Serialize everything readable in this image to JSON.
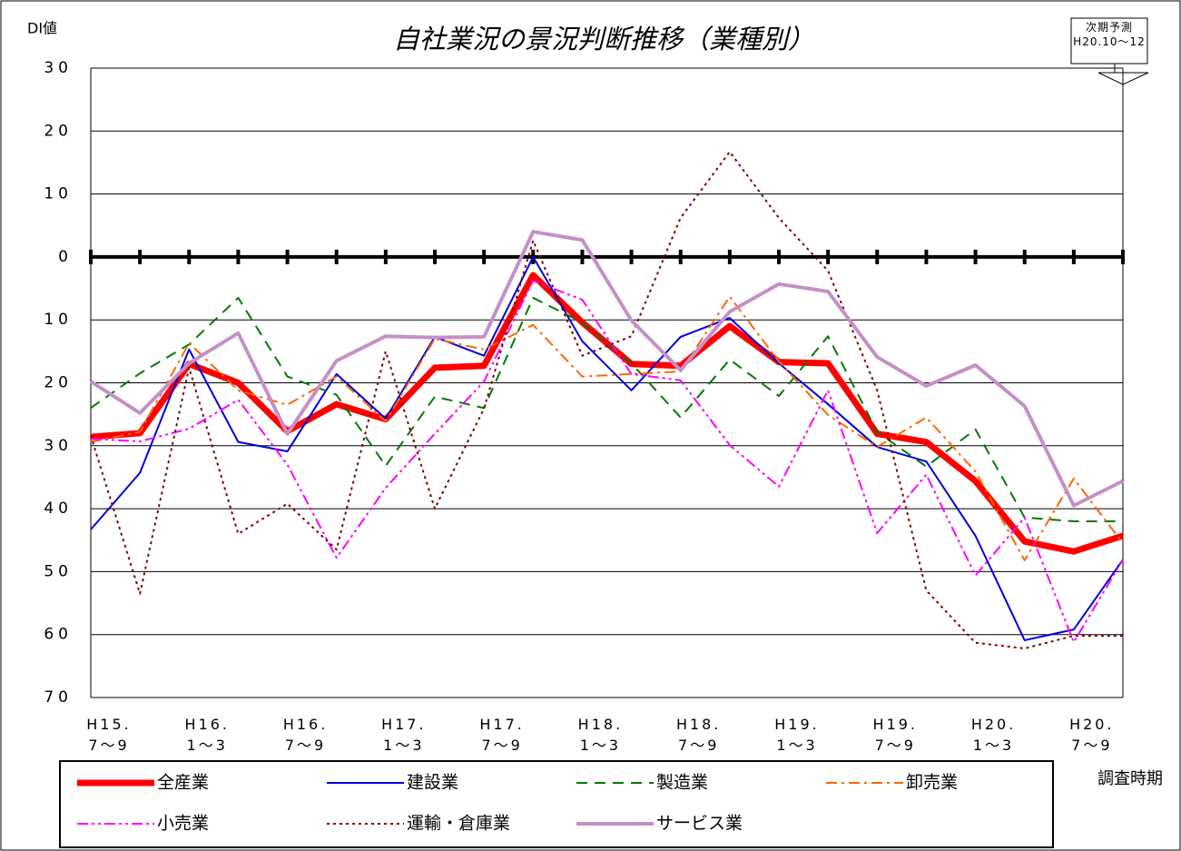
{
  "chart_data": {
    "type": "line",
    "title": "自社業況の景況判断推移（業種別）",
    "y_label": "DI値",
    "x_label": "調査時期",
    "annotation": "次期予測\nH20.10～12",
    "categories": [
      "H15.\n7～9",
      null,
      "H16.\n1～3",
      null,
      "H16.\n7～9",
      null,
      "H17.\n1～3",
      null,
      "H17.\n7～9",
      null,
      "H18.\n1～3",
      null,
      "H18.\n7～9",
      null,
      "H19.\n1～3",
      null,
      "H19.\n7～9",
      null,
      "H20.\n1～3",
      null,
      "H20.\n7～9",
      null
    ],
    "ylim": [
      -70,
      30
    ],
    "yticks": [
      30,
      20,
      10,
      0,
      {
        "value": -10,
        "label": "10"
      },
      {
        "value": -20,
        "label": "20"
      },
      {
        "value": -30,
        "label": "30"
      },
      {
        "value": -40,
        "label": "40"
      },
      {
        "value": -50,
        "label": "50"
      },
      {
        "value": -60,
        "label": "60"
      },
      {
        "value": -70,
        "label": "70"
      }
    ],
    "grid": true,
    "series": [
      {
        "name": "全産業",
        "color": "#ff0000",
        "width": 7,
        "dash": "none",
        "values": [
          -28.6,
          -28,
          -17,
          -20,
          -27.7,
          -23.4,
          -25.8,
          -17.6,
          -17.3,
          -2.9,
          -10.4,
          -17,
          -17.3,
          -11,
          -16.7,
          -16.9,
          -28.1,
          -29.4,
          -35.6,
          -45.2,
          -46.8,
          -44.3
        ]
      },
      {
        "name": "建設業",
        "color": "#0000dd",
        "width": 2,
        "dash": "none",
        "values": [
          -43.3,
          -34.3,
          -14.7,
          -29.4,
          -30.9,
          -18.6,
          -25.7,
          -12.7,
          -15.7,
          0,
          -13.4,
          -21.2,
          -12.7,
          -9.7,
          -16.9,
          -23.4,
          -30.2,
          -32.5,
          -44.3,
          -60.9,
          -59.2,
          -48.1
        ]
      },
      {
        "name": "製造業",
        "color": "#007a00",
        "width": 2,
        "dash": "12,8",
        "values": [
          -24,
          -18.5,
          -13.9,
          -6.5,
          -19,
          -21.9,
          -33.2,
          -22.2,
          -24,
          -6.5,
          -10.4,
          -16.9,
          -25.5,
          -16.3,
          -22.1,
          -12.6,
          -27.8,
          -33.3,
          -27.4,
          -41.4,
          -42,
          -42
        ]
      },
      {
        "name": "卸売業",
        "color": "#ff6600",
        "width": 2,
        "dash": "12,5,3,5",
        "values": [
          -29.4,
          -27.8,
          -13.7,
          -21.2,
          -23.5,
          -19,
          -26.1,
          -13,
          -14.7,
          -10.8,
          -19,
          -18.6,
          -18.2,
          -6.3,
          -16.6,
          -25.1,
          -30.2,
          -25.5,
          -34.1,
          -48.2,
          -35.2,
          -45.5
        ]
      },
      {
        "name": "小売業",
        "color": "#ff00ff",
        "width": 2,
        "dash": "12,4,3,4,3,4",
        "values": [
          -28.9,
          -29.3,
          -27.3,
          -22.7,
          -33,
          -47.8,
          -36.7,
          -28.1,
          -19.8,
          -3.8,
          -6.8,
          -18.6,
          -19.6,
          -29.9,
          -36.5,
          -21.2,
          -43.9,
          -34.6,
          -50.6,
          -41.4,
          -61.2,
          -48.1
        ]
      },
      {
        "name": "運輸・倉庫業",
        "color": "#800000",
        "width": 2,
        "dash": "3,4",
        "values": [
          -28.4,
          -53.5,
          -17.6,
          -44,
          -39.2,
          -46.5,
          -15,
          -40,
          -24.1,
          2.6,
          -15.7,
          -12.6,
          6.2,
          16.7,
          6.2,
          -2.2,
          -21.2,
          -53,
          -61.3,
          -62.2,
          -60.2,
          -60.2
        ]
      },
      {
        "name": "サービス業",
        "color": "#c58fc8",
        "width": 4,
        "dash": "none",
        "values": [
          -19.8,
          -24.8,
          -16.9,
          -12.1,
          -28.1,
          -16.5,
          -12.6,
          -12.8,
          -12.7,
          4,
          2.7,
          -10.1,
          -18,
          -8.7,
          -4.3,
          -5.5,
          -15.9,
          -20.5,
          -17.2,
          -23.7,
          -39.5,
          -35.6
        ]
      }
    ]
  }
}
